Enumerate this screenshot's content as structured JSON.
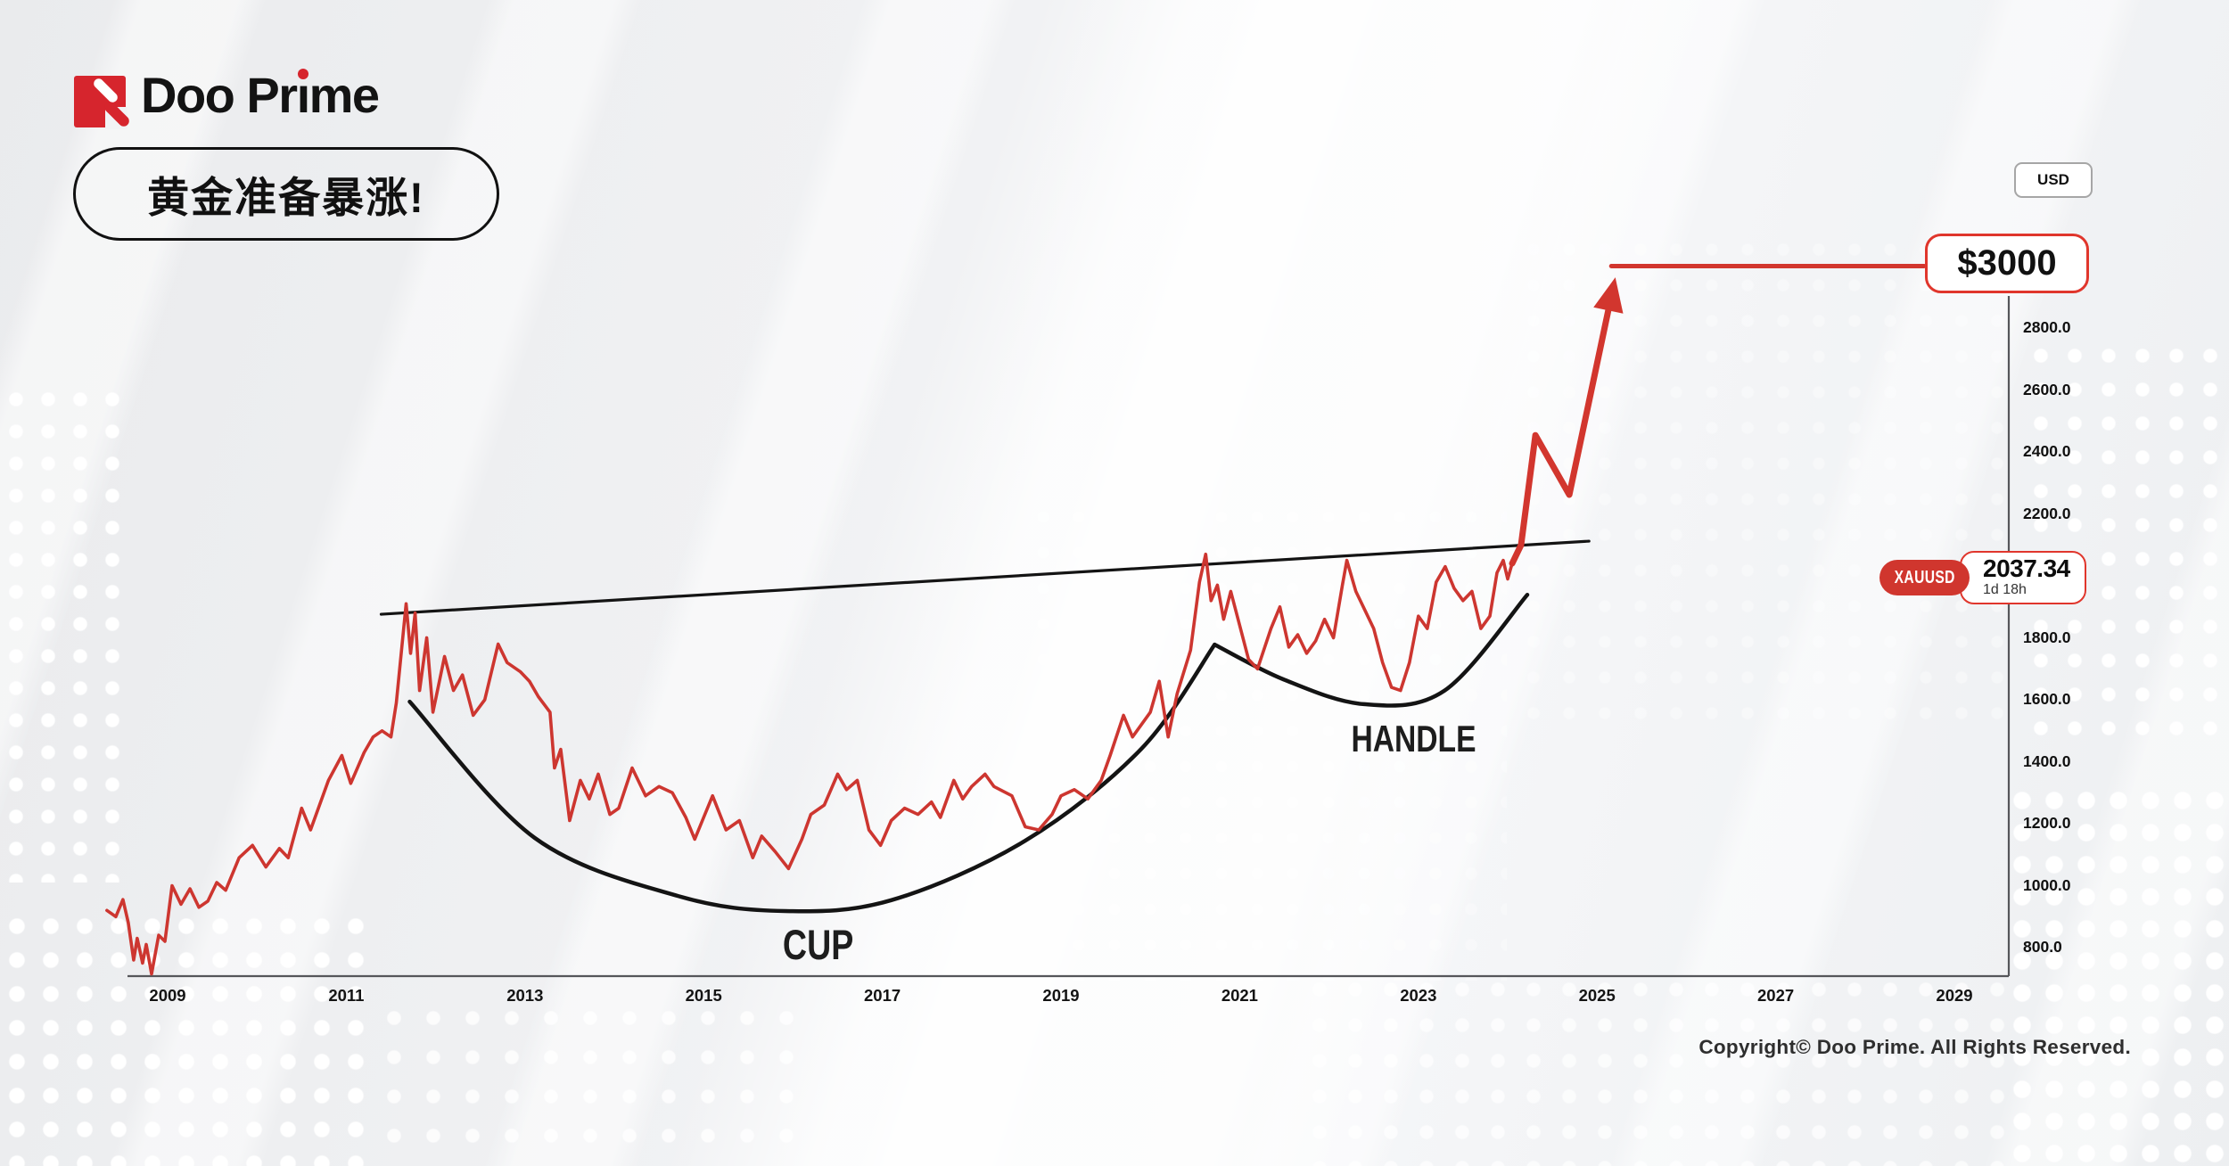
{
  "header": {
    "brand": "Doo Prime",
    "headline": "黄金准备暴涨!"
  },
  "badges": {
    "currency": "USD"
  },
  "target": {
    "label": "$3000"
  },
  "price_badge": {
    "symbol": "XAUUSD",
    "price": "2037.34",
    "countdown": "1d 18h"
  },
  "pattern_labels": {
    "cup": "CUP",
    "handle": "HANDLE"
  },
  "footer": {
    "copyright": "Copyright© Doo Prime. All Rights Reserved."
  },
  "chart_data": {
    "type": "line",
    "title": "XAUUSD with cup-and-handle pattern projecting $3000",
    "symbol": "XAUUSD",
    "last_price": 2037.34,
    "target_price": 3000,
    "x_axis": {
      "ticks": [
        {
          "value": 2009,
          "label": "2009"
        },
        {
          "value": 2011,
          "label": "2011"
        },
        {
          "value": 2013,
          "label": "2013"
        },
        {
          "value": 2015,
          "label": "2015"
        },
        {
          "value": 2017,
          "label": "2017"
        },
        {
          "value": 2019,
          "label": "2019"
        },
        {
          "value": 2021,
          "label": "2021"
        },
        {
          "value": 2023,
          "label": "2023"
        },
        {
          "value": 2025,
          "label": "2025"
        },
        {
          "value": 2027,
          "label": "2027"
        },
        {
          "value": 2029,
          "label": "2029"
        }
      ]
    },
    "y_axis": {
      "ticks": [
        {
          "value": 2800,
          "label": "2800.0"
        },
        {
          "value": 2600,
          "label": "2600.0"
        },
        {
          "value": 2400,
          "label": "2400.0"
        },
        {
          "value": 2200,
          "label": "2200.0"
        },
        {
          "value": 1800,
          "label": "1800.0"
        },
        {
          "value": 1600,
          "label": "1600.0"
        },
        {
          "value": 1400,
          "label": "1400.0"
        },
        {
          "value": 1200,
          "label": "1200.0"
        },
        {
          "value": 1000,
          "label": "1000.0"
        },
        {
          "value": 800,
          "label": "800.0"
        }
      ]
    },
    "series": [
      {
        "name": "XAUUSD price",
        "color": "#cd3630",
        "points": [
          [
            2008.32,
            920
          ],
          [
            2008.42,
            900
          ],
          [
            2008.5,
            955
          ],
          [
            2008.56,
            880
          ],
          [
            2008.62,
            760
          ],
          [
            2008.66,
            830
          ],
          [
            2008.72,
            750
          ],
          [
            2008.76,
            810
          ],
          [
            2008.82,
            715
          ],
          [
            2008.9,
            840
          ],
          [
            2008.97,
            820
          ],
          [
            2009.05,
            1000
          ],
          [
            2009.15,
            940
          ],
          [
            2009.25,
            990
          ],
          [
            2009.35,
            930
          ],
          [
            2009.45,
            950
          ],
          [
            2009.55,
            1010
          ],
          [
            2009.65,
            985
          ],
          [
            2009.8,
            1090
          ],
          [
            2009.95,
            1130
          ],
          [
            2010.1,
            1060
          ],
          [
            2010.25,
            1120
          ],
          [
            2010.35,
            1090
          ],
          [
            2010.5,
            1250
          ],
          [
            2010.6,
            1180
          ],
          [
            2010.8,
            1340
          ],
          [
            2010.95,
            1420
          ],
          [
            2011.05,
            1330
          ],
          [
            2011.2,
            1430
          ],
          [
            2011.3,
            1480
          ],
          [
            2011.4,
            1500
          ],
          [
            2011.5,
            1480
          ],
          [
            2011.56,
            1590
          ],
          [
            2011.67,
            1910
          ],
          [
            2011.72,
            1750
          ],
          [
            2011.77,
            1880
          ],
          [
            2011.82,
            1630
          ],
          [
            2011.9,
            1800
          ],
          [
            2011.97,
            1560
          ],
          [
            2012.1,
            1740
          ],
          [
            2012.2,
            1630
          ],
          [
            2012.3,
            1680
          ],
          [
            2012.42,
            1550
          ],
          [
            2012.55,
            1600
          ],
          [
            2012.7,
            1780
          ],
          [
            2012.8,
            1720
          ],
          [
            2012.95,
            1690
          ],
          [
            2013.05,
            1660
          ],
          [
            2013.15,
            1610
          ],
          [
            2013.28,
            1560
          ],
          [
            2013.33,
            1380
          ],
          [
            2013.4,
            1440
          ],
          [
            2013.5,
            1210
          ],
          [
            2013.62,
            1340
          ],
          [
            2013.72,
            1280
          ],
          [
            2013.82,
            1360
          ],
          [
            2013.95,
            1230
          ],
          [
            2014.05,
            1250
          ],
          [
            2014.2,
            1380
          ],
          [
            2014.35,
            1290
          ],
          [
            2014.5,
            1320
          ],
          [
            2014.65,
            1300
          ],
          [
            2014.8,
            1220
          ],
          [
            2014.9,
            1150
          ],
          [
            2015.0,
            1220
          ],
          [
            2015.1,
            1290
          ],
          [
            2015.25,
            1180
          ],
          [
            2015.4,
            1210
          ],
          [
            2015.55,
            1090
          ],
          [
            2015.65,
            1160
          ],
          [
            2015.8,
            1110
          ],
          [
            2015.95,
            1055
          ],
          [
            2016.1,
            1150
          ],
          [
            2016.2,
            1230
          ],
          [
            2016.35,
            1260
          ],
          [
            2016.5,
            1360
          ],
          [
            2016.6,
            1310
          ],
          [
            2016.72,
            1340
          ],
          [
            2016.85,
            1180
          ],
          [
            2016.98,
            1130
          ],
          [
            2017.1,
            1210
          ],
          [
            2017.25,
            1250
          ],
          [
            2017.4,
            1230
          ],
          [
            2017.55,
            1270
          ],
          [
            2017.65,
            1220
          ],
          [
            2017.8,
            1340
          ],
          [
            2017.9,
            1280
          ],
          [
            2018.0,
            1320
          ],
          [
            2018.15,
            1360
          ],
          [
            2018.25,
            1320
          ],
          [
            2018.45,
            1290
          ],
          [
            2018.6,
            1190
          ],
          [
            2018.75,
            1180
          ],
          [
            2018.9,
            1230
          ],
          [
            2019.0,
            1290
          ],
          [
            2019.15,
            1310
          ],
          [
            2019.3,
            1280
          ],
          [
            2019.45,
            1340
          ],
          [
            2019.55,
            1420
          ],
          [
            2019.7,
            1550
          ],
          [
            2019.8,
            1480
          ],
          [
            2019.9,
            1520
          ],
          [
            2020.0,
            1560
          ],
          [
            2020.1,
            1660
          ],
          [
            2020.2,
            1480
          ],
          [
            2020.3,
            1620
          ],
          [
            2020.45,
            1760
          ],
          [
            2020.55,
            1980
          ],
          [
            2020.62,
            2070
          ],
          [
            2020.68,
            1920
          ],
          [
            2020.75,
            1970
          ],
          [
            2020.82,
            1860
          ],
          [
            2020.9,
            1950
          ],
          [
            2021.0,
            1840
          ],
          [
            2021.1,
            1730
          ],
          [
            2021.2,
            1700
          ],
          [
            2021.35,
            1830
          ],
          [
            2021.45,
            1900
          ],
          [
            2021.55,
            1770
          ],
          [
            2021.65,
            1810
          ],
          [
            2021.75,
            1750
          ],
          [
            2021.85,
            1790
          ],
          [
            2021.95,
            1860
          ],
          [
            2022.05,
            1800
          ],
          [
            2022.15,
            1970
          ],
          [
            2022.2,
            2050
          ],
          [
            2022.3,
            1950
          ],
          [
            2022.4,
            1890
          ],
          [
            2022.5,
            1830
          ],
          [
            2022.6,
            1720
          ],
          [
            2022.7,
            1640
          ],
          [
            2022.8,
            1630
          ],
          [
            2022.9,
            1720
          ],
          [
            2023.0,
            1870
          ],
          [
            2023.1,
            1830
          ],
          [
            2023.2,
            1980
          ],
          [
            2023.3,
            2030
          ],
          [
            2023.4,
            1960
          ],
          [
            2023.5,
            1920
          ],
          [
            2023.6,
            1950
          ],
          [
            2023.7,
            1830
          ],
          [
            2023.8,
            1870
          ],
          [
            2023.88,
            2010
          ],
          [
            2023.95,
            2050
          ],
          [
            2024.0,
            1990
          ],
          [
            2024.05,
            2040
          ]
        ]
      }
    ],
    "annotations": {
      "trendline": {
        "type": "line",
        "color": "#141414",
        "points": [
          [
            2011.39,
            1876
          ],
          [
            2024.91,
            2112
          ]
        ]
      },
      "cup_curve": {
        "type": "curve",
        "color": "#141414",
        "points": [
          [
            2011.71,
            1594
          ],
          [
            2013.11,
            1154
          ],
          [
            2014.71,
            967
          ],
          [
            2015.91,
            918
          ],
          [
            2017.1,
            953
          ],
          [
            2018.6,
            1145
          ],
          [
            2019.9,
            1442
          ],
          [
            2020.72,
            1778
          ]
        ]
      },
      "handle_curve": {
        "type": "curve",
        "color": "#141414",
        "points": [
          [
            2020.72,
            1778
          ],
          [
            2021.49,
            1666
          ],
          [
            2022.39,
            1586
          ],
          [
            2023.29,
            1629
          ],
          [
            2024.22,
            1939
          ]
        ]
      },
      "projection": {
        "type": "polyline_arrow",
        "color": "#d2362e",
        "points": [
          [
            2024.05,
            2040
          ],
          [
            2024.15,
            2100
          ],
          [
            2024.31,
            2454
          ],
          [
            2024.69,
            2262
          ],
          [
            2025.18,
            2930
          ]
        ]
      },
      "target_line": {
        "type": "line",
        "color": "#d2362e",
        "price": 3000,
        "points": [
          [
            2025.16,
            3000
          ],
          [
            2028.66,
            3000
          ]
        ]
      }
    }
  }
}
